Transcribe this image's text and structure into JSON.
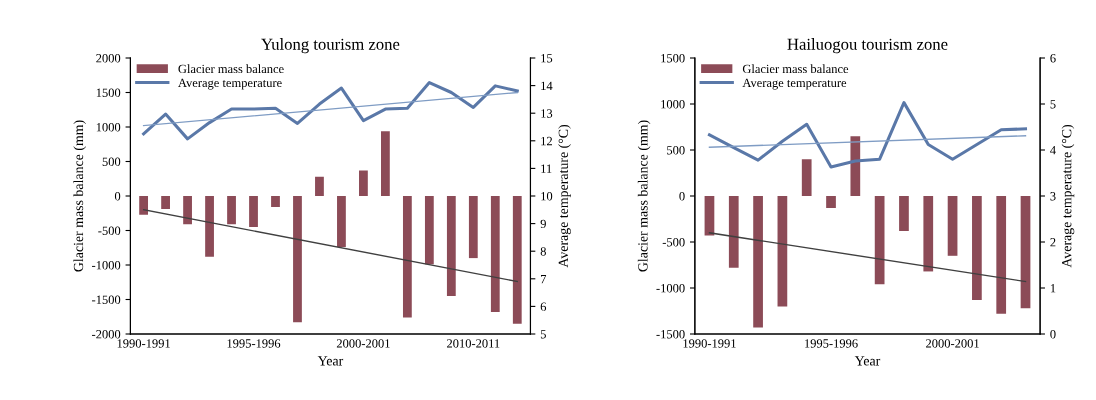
{
  "chart_data": [
    {
      "type": "bar",
      "title": "Yulong tourism zone",
      "xlabel": "Year",
      "ylabel": "Glacier mass balance (mm)",
      "y2label": "Average temperature (°C)",
      "categories": [
        "1990-1991",
        null,
        null,
        null,
        null,
        "1995-1996",
        null,
        null,
        null,
        null,
        "2000-2001",
        null,
        null,
        null,
        null,
        "2010-2011",
        null,
        null
      ],
      "ylim": [
        -2000,
        2000
      ],
      "yticks": [
        -2000,
        -1500,
        -1000,
        -500,
        0,
        500,
        1000,
        1500,
        2000
      ],
      "y2lim": [
        5,
        15
      ],
      "y2ticks": [
        5,
        6,
        7,
        8,
        9,
        10,
        11,
        12,
        13,
        14,
        15
      ],
      "grid": false,
      "legend": "top left",
      "series": [
        {
          "name": "Glacier mass balance",
          "color": "#8c4b57",
          "values": [
            -270,
            -190,
            -410,
            -880,
            -410,
            -450,
            -160,
            -1830,
            280,
            -740,
            370,
            940,
            -1760,
            -990,
            -1450,
            -900,
            -1680,
            -1850
          ]
        },
        {
          "name": "Average temperature",
          "type": "line",
          "axis": "y2",
          "color": "#5a78a8",
          "values": [
            12.25,
            12.97,
            12.07,
            12.66,
            13.15,
            13.15,
            13.18,
            12.63,
            13.33,
            13.91,
            12.73,
            13.15,
            13.18,
            14.11,
            13.75,
            13.21,
            13.99,
            13.81
          ]
        },
        {
          "type": "line",
          "color": "#404040",
          "values": [
            -200,
            null,
            null,
            null,
            null,
            null,
            null,
            null,
            null,
            null,
            null,
            null,
            null,
            null,
            null,
            null,
            null,
            -1240
          ]
        },
        {
          "type": "line",
          "axis": "y2",
          "color": "#7f9cc4",
          "values": [
            12.55,
            null,
            null,
            null,
            null,
            null,
            null,
            null,
            null,
            null,
            null,
            null,
            null,
            null,
            null,
            null,
            null,
            13.75
          ]
        }
      ]
    },
    {
      "type": "bar",
      "title": "Hailuogou tourism zone",
      "xlabel": "Year",
      "ylabel": "Glacier mass balance (mm)",
      "y2label": "Average temperature (°C)",
      "categories": [
        "1990-1991",
        null,
        null,
        null,
        null,
        "1995-1996",
        null,
        null,
        null,
        null,
        "2000-2001",
        null,
        null,
        null
      ],
      "ylim": [
        -1500,
        1500
      ],
      "yticks": [
        -1500,
        -1000,
        -500,
        0,
        500,
        1000,
        1500
      ],
      "y2lim": [
        0,
        6
      ],
      "y2ticks": [
        0,
        1,
        2,
        3,
        4,
        5,
        6
      ],
      "grid": false,
      "legend": "top left",
      "series": [
        {
          "name": "Glacier mass balance",
          "color": "#8c4b57",
          "values": [
            -430,
            -780,
            -1430,
            -1200,
            400,
            -130,
            650,
            -960,
            -380,
            -820,
            -650,
            -1130,
            -1280,
            -1220
          ]
        },
        {
          "name": "Average temperature",
          "type": "line",
          "axis": "y2",
          "color": "#5a78a8",
          "values": [
            4.33,
            4.05,
            3.78,
            4.19,
            4.56,
            3.63,
            3.76,
            3.8,
            5.03,
            4.12,
            3.8,
            4.12,
            4.44,
            4.46
          ]
        },
        {
          "type": "line",
          "color": "#404040",
          "values": [
            -400,
            null,
            null,
            null,
            null,
            null,
            null,
            null,
            null,
            null,
            null,
            null,
            null,
            -930
          ]
        },
        {
          "type": "line",
          "axis": "y2",
          "color": "#7f9cc4",
          "values": [
            4.06,
            null,
            null,
            null,
            null,
            null,
            null,
            null,
            null,
            null,
            null,
            null,
            null,
            4.31
          ]
        }
      ]
    }
  ]
}
